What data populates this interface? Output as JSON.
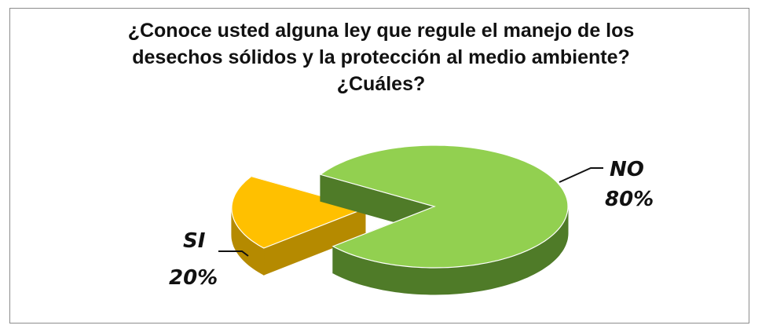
{
  "chart_data": {
    "type": "pie",
    "title_lines": [
      "¿Conoce usted alguna ley que regule el manejo de los",
      "desechos sólidos y la protección al medio ambiente?",
      "¿Cuáles?"
    ],
    "categories": [
      "NO",
      "SI"
    ],
    "values": [
      80,
      20
    ],
    "value_labels": [
      "80%",
      "20%"
    ],
    "colors": {
      "NO": {
        "top": "#92d050",
        "side": "#4f7b28"
      },
      "SI": {
        "top": "#ffc000",
        "side": "#b58a00"
      }
    },
    "style": "3d-exploded"
  }
}
